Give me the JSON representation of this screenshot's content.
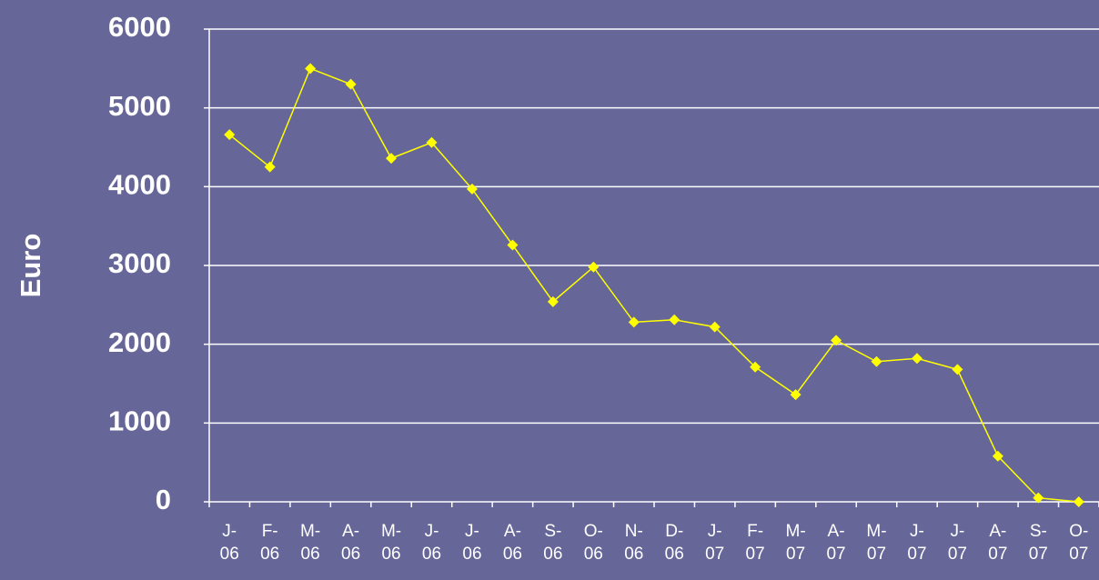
{
  "chart_data": {
    "type": "line",
    "ylabel": "Euro",
    "categories": [
      "J-06",
      "F-06",
      "M-06",
      "A-06",
      "M-06",
      "J-06",
      "J-06",
      "A-06",
      "S-06",
      "O-06",
      "N-06",
      "D-06",
      "J-07",
      "F-07",
      "M-07",
      "A-07",
      "M-07",
      "J-07",
      "J-07",
      "A-07",
      "S-07",
      "O-07"
    ],
    "series": [
      {
        "color": "#ffff00",
        "values": [
          4660,
          4250,
          5500,
          5300,
          4360,
          4560,
          3970,
          3260,
          2540,
          2980,
          2280,
          2310,
          2220,
          1710,
          1360,
          2050,
          1780,
          1820,
          1680,
          580,
          50,
          0
        ]
      }
    ],
    "ylim": [
      0,
      6000
    ],
    "yticks": [
      0,
      1000,
      2000,
      3000,
      4000,
      5000,
      6000
    ],
    "grid": true
  }
}
